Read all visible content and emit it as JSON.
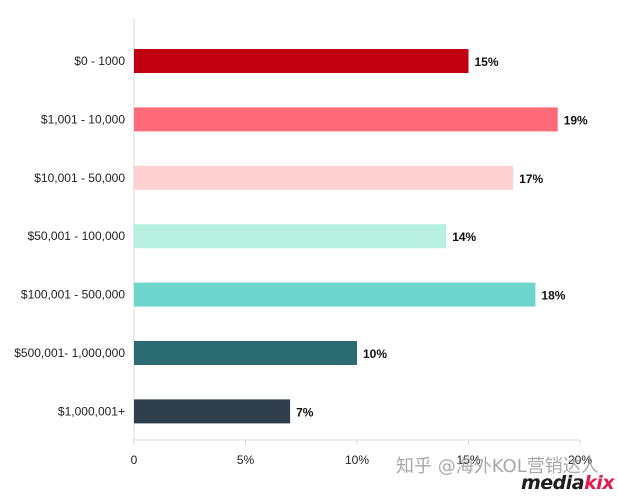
{
  "chart_data": {
    "type": "bar",
    "orientation": "horizontal",
    "categories": [
      "$0 - 1000",
      "$1,001 - 10,000",
      "$10,001 - 50,000",
      "$50,001 - 100,000",
      "$100,001 - 500,000",
      "$500,001- 1,000,000",
      "$1,000,001+"
    ],
    "values": [
      15,
      19,
      17,
      14,
      18,
      10,
      7
    ],
    "value_labels": [
      "15%",
      "19%",
      "17%",
      "14%",
      "18%",
      "10%",
      "7%"
    ],
    "bar_colors": [
      "#c00010",
      "#ff6b78",
      "#ffd0d0",
      "#b8f0e0",
      "#6dd5cc",
      "#2a6b72",
      "#2e3f4b"
    ],
    "xlim": [
      0,
      20
    ],
    "xticks": [
      0,
      5,
      10,
      15,
      20
    ],
    "xtick_labels": [
      "0",
      "5%",
      "10%",
      "15%",
      "20%"
    ],
    "grid": false,
    "title": "",
    "xlabel": "",
    "ylabel": ""
  },
  "watermark": "知乎 @海外KOL营销达人",
  "brand": {
    "part1": "media",
    "part2": "kix"
  }
}
